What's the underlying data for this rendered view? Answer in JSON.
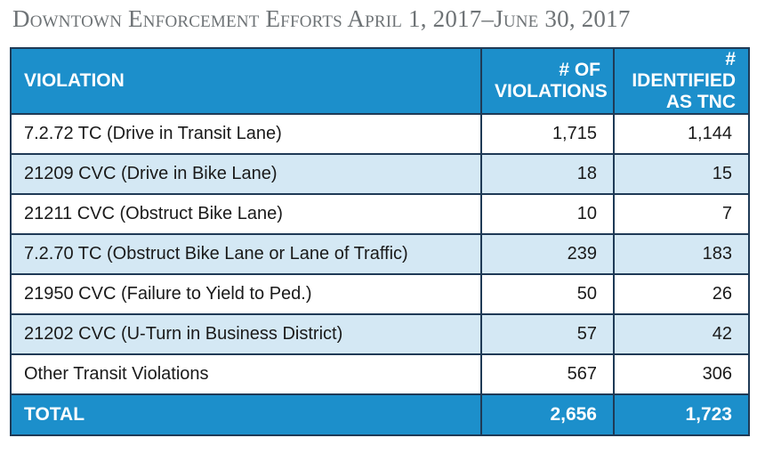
{
  "title": "Downtown Enforcement Efforts April 1, 2017–June 30, 2017",
  "table": {
    "headers": {
      "violation": "VIOLATION",
      "violations_line1": "# OF",
      "violations_line2": "VIOLATIONS",
      "tnc_line1": "# IDENTIFIED",
      "tnc_line2": "AS TNC"
    },
    "rows": [
      {
        "violation": "7.2.72 TC (Drive in Transit Lane)",
        "count": "1,715",
        "tnc": "1,144"
      },
      {
        "violation": "21209 CVC (Drive in Bike Lane)",
        "count": "18",
        "tnc": "15"
      },
      {
        "violation": "21211 CVC (Obstruct Bike Lane)",
        "count": "10",
        "tnc": "7"
      },
      {
        "violation": "7.2.70 TC (Obstruct Bike Lane or Lane of Traffic)",
        "count": "239",
        "tnc": "183"
      },
      {
        "violation": "21950 CVC (Failure to Yield to Ped.)",
        "count": "50",
        "tnc": "26"
      },
      {
        "violation": "21202 CVC (U-Turn in Business District)",
        "count": "57",
        "tnc": "42"
      },
      {
        "violation": "Other Transit Violations",
        "count": "567",
        "tnc": "306"
      }
    ],
    "total": {
      "label": "TOTAL",
      "count": "2,656",
      "tnc": "1,723"
    }
  },
  "colors": {
    "header_bg": "#1c8fcb",
    "alt_row_bg": "#d4e8f4",
    "border": "#1f3a56",
    "title": "#6e7376"
  }
}
